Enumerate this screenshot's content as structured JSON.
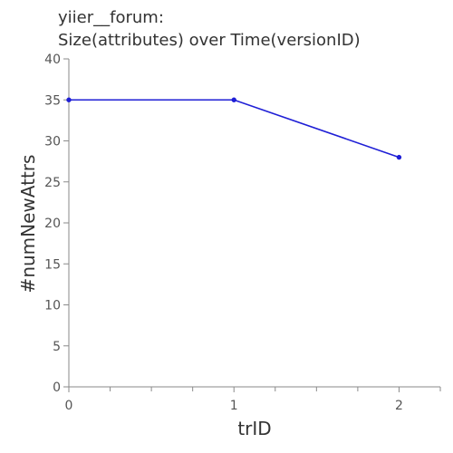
{
  "chart_data": {
    "type": "line",
    "title_lines": [
      "yiier__forum:",
      "Size(attributes) over Time(versionID)"
    ],
    "xlabel": "trID",
    "ylabel": "#numNewAttrs",
    "x": [
      0,
      1,
      2
    ],
    "y": [
      35,
      35,
      28
    ],
    "xlim": [
      0,
      2.25
    ],
    "ylim": [
      0,
      40
    ],
    "x_ticks": [
      0,
      1,
      2
    ],
    "x_minor_step": 0.25,
    "y_ticks": [
      0,
      5,
      10,
      15,
      20,
      25,
      30,
      35,
      40
    ],
    "grid": false,
    "line_color": "#1f1fd6",
    "axis_color": "#8a8a8a",
    "text_color": "#333333"
  }
}
